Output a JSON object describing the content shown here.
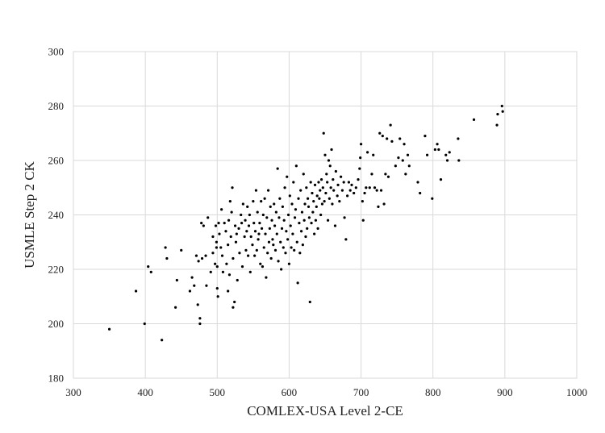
{
  "chart_data": {
    "type": "scatter",
    "title": "",
    "xlabel": "COMLEX-USA Level 2-CE",
    "ylabel": "USMLE Step 2 CK",
    "xlim": [
      300,
      1000
    ],
    "ylim": [
      180,
      300
    ],
    "x_ticks": [
      300,
      400,
      500,
      600,
      700,
      800,
      900,
      1000
    ],
    "y_ticks": [
      180,
      200,
      220,
      240,
      260,
      280,
      300
    ],
    "grid": true,
    "legend": "none",
    "colors": {
      "point": "#000000",
      "grid": "#d9d9d9",
      "frame": "#d9d9d9"
    },
    "points": [
      [
        350,
        198
      ],
      [
        387,
        212
      ],
      [
        399,
        200
      ],
      [
        404,
        221
      ],
      [
        408,
        219
      ],
      [
        423,
        194
      ],
      [
        428,
        228
      ],
      [
        430,
        224
      ],
      [
        444,
        216
      ],
      [
        442,
        206
      ],
      [
        450,
        227
      ],
      [
        462,
        212
      ],
      [
        465,
        217
      ],
      [
        468,
        214
      ],
      [
        471,
        225
      ],
      [
        474,
        223
      ],
      [
        473,
        207
      ],
      [
        476,
        200
      ],
      [
        476,
        202
      ],
      [
        479,
        224
      ],
      [
        478,
        237
      ],
      [
        481,
        236
      ],
      [
        484,
        225
      ],
      [
        485,
        214
      ],
      [
        487,
        239
      ],
      [
        491,
        219
      ],
      [
        494,
        226
      ],
      [
        494,
        232
      ],
      [
        497,
        222
      ],
      [
        498,
        236
      ],
      [
        499,
        230
      ],
      [
        499,
        228
      ],
      [
        500,
        221
      ],
      [
        500,
        213
      ],
      [
        501,
        210
      ],
      [
        502,
        237
      ],
      [
        503,
        233
      ],
      [
        505,
        228
      ],
      [
        506,
        242
      ],
      [
        507,
        225
      ],
      [
        508,
        219
      ],
      [
        510,
        237
      ],
      [
        512,
        234
      ],
      [
        513,
        222
      ],
      [
        515,
        212
      ],
      [
        515,
        229
      ],
      [
        516,
        238
      ],
      [
        517,
        218
      ],
      [
        518,
        245
      ],
      [
        519,
        232
      ],
      [
        520,
        241
      ],
      [
        521,
        250
      ],
      [
        522,
        206
      ],
      [
        522,
        224
      ],
      [
        524,
        208
      ],
      [
        525,
        236
      ],
      [
        526,
        230
      ],
      [
        527,
        233
      ],
      [
        528,
        216
      ],
      [
        530,
        235
      ],
      [
        531,
        226
      ],
      [
        533,
        240
      ],
      [
        534,
        237
      ],
      [
        535,
        221
      ],
      [
        536,
        244
      ],
      [
        538,
        232
      ],
      [
        539,
        238
      ],
      [
        540,
        227
      ],
      [
        541,
        234
      ],
      [
        542,
        243
      ],
      [
        543,
        225
      ],
      [
        544,
        236
      ],
      [
        545,
        240
      ],
      [
        546,
        219
      ],
      [
        547,
        232
      ],
      [
        549,
        229
      ],
      [
        550,
        245
      ],
      [
        551,
        237
      ],
      [
        552,
        225
      ],
      [
        553,
        234
      ],
      [
        554,
        249
      ],
      [
        555,
        227
      ],
      [
        556,
        241
      ],
      [
        557,
        231
      ],
      [
        558,
        233
      ],
      [
        559,
        237
      ],
      [
        560,
        222
      ],
      [
        561,
        245
      ],
      [
        562,
        235
      ],
      [
        563,
        221
      ],
      [
        564,
        240
      ],
      [
        565,
        228
      ],
      [
        566,
        246
      ],
      [
        567,
        233
      ],
      [
        568,
        217
      ],
      [
        569,
        239
      ],
      [
        570,
        226
      ],
      [
        571,
        249
      ],
      [
        572,
        230
      ],
      [
        573,
        235
      ],
      [
        574,
        243
      ],
      [
        575,
        224
      ],
      [
        576,
        238
      ],
      [
        577,
        231
      ],
      [
        578,
        229
      ],
      [
        579,
        244
      ],
      [
        580,
        236
      ],
      [
        581,
        227
      ],
      [
        582,
        241
      ],
      [
        583,
        233
      ],
      [
        584,
        257
      ],
      [
        585,
        223
      ],
      [
        586,
        239
      ],
      [
        587,
        246
      ],
      [
        588,
        230
      ],
      [
        589,
        220
      ],
      [
        590,
        235
      ],
      [
        591,
        243
      ],
      [
        592,
        228
      ],
      [
        593,
        238
      ],
      [
        594,
        250
      ],
      [
        595,
        226
      ],
      [
        596,
        234
      ],
      [
        597,
        254
      ],
      [
        598,
        231
      ],
      [
        599,
        240
      ],
      [
        600,
        222
      ],
      [
        601,
        247
      ],
      [
        602,
        236
      ],
      [
        603,
        228
      ],
      [
        604,
        244
      ],
      [
        605,
        233
      ],
      [
        606,
        252
      ],
      [
        607,
        227
      ],
      [
        608,
        239
      ],
      [
        609,
        242
      ],
      [
        610,
        258
      ],
      [
        611,
        230
      ],
      [
        612,
        215
      ],
      [
        613,
        246
      ],
      [
        614,
        237
      ],
      [
        615,
        226
      ],
      [
        616,
        249
      ],
      [
        617,
        234
      ],
      [
        618,
        241
      ],
      [
        619,
        229
      ],
      [
        620,
        255
      ],
      [
        621,
        238
      ],
      [
        622,
        244
      ],
      [
        623,
        232
      ],
      [
        624,
        250
      ],
      [
        625,
        235
      ],
      [
        626,
        246
      ],
      [
        627,
        243
      ],
      [
        628,
        239
      ],
      [
        629,
        208
      ],
      [
        630,
        252
      ],
      [
        631,
        237
      ],
      [
        632,
        248
      ],
      [
        633,
        241
      ],
      [
        634,
        245
      ],
      [
        635,
        233
      ],
      [
        636,
        251
      ],
      [
        637,
        238
      ],
      [
        638,
        243
      ],
      [
        639,
        247
      ],
      [
        640,
        235
      ],
      [
        641,
        252
      ],
      [
        642,
        246
      ],
      [
        643,
        249
      ],
      [
        644,
        240
      ],
      [
        645,
        253
      ],
      [
        646,
        244
      ],
      [
        647,
        250
      ],
      [
        648,
        270
      ],
      [
        649,
        245
      ],
      [
        650,
        262
      ],
      [
        651,
        248
      ],
      [
        652,
        255
      ],
      [
        653,
        252
      ],
      [
        654,
        238
      ],
      [
        655,
        260
      ],
      [
        656,
        246
      ],
      [
        657,
        258
      ],
      [
        658,
        250
      ],
      [
        659,
        264
      ],
      [
        660,
        244
      ],
      [
        661,
        253
      ],
      [
        662,
        249
      ],
      [
        664,
        236
      ],
      [
        665,
        256
      ],
      [
        667,
        247
      ],
      [
        668,
        251
      ],
      [
        670,
        245
      ],
      [
        672,
        254
      ],
      [
        674,
        249
      ],
      [
        676,
        252
      ],
      [
        677,
        239
      ],
      [
        679,
        231
      ],
      [
        681,
        247
      ],
      [
        683,
        252
      ],
      [
        685,
        249
      ],
      [
        687,
        251
      ],
      [
        690,
        248
      ],
      [
        693,
        250
      ],
      [
        696,
        253
      ],
      [
        698,
        257
      ],
      [
        699,
        261
      ],
      [
        700,
        266
      ],
      [
        702,
        245
      ],
      [
        703,
        238
      ],
      [
        705,
        248
      ],
      [
        707,
        250
      ],
      [
        709,
        263
      ],
      [
        712,
        250
      ],
      [
        715,
        255
      ],
      [
        717,
        262
      ],
      [
        719,
        250
      ],
      [
        722,
        249
      ],
      [
        724,
        243
      ],
      [
        726,
        270
      ],
      [
        728,
        249
      ],
      [
        730,
        269
      ],
      [
        732,
        244
      ],
      [
        734,
        255
      ],
      [
        736,
        268
      ],
      [
        738,
        254
      ],
      [
        741,
        273
      ],
      [
        743,
        267
      ],
      [
        748,
        258
      ],
      [
        752,
        261
      ],
      [
        754,
        268
      ],
      [
        758,
        260
      ],
      [
        760,
        266
      ],
      [
        762,
        255
      ],
      [
        765,
        262
      ],
      [
        767,
        258
      ],
      [
        779,
        252
      ],
      [
        782,
        248
      ],
      [
        789,
        269
      ],
      [
        792,
        262
      ],
      [
        799,
        246
      ],
      [
        803,
        264
      ],
      [
        806,
        266
      ],
      [
        808,
        264
      ],
      [
        811,
        253
      ],
      [
        818,
        262
      ],
      [
        820,
        260
      ],
      [
        823,
        263
      ],
      [
        835,
        268
      ],
      [
        836,
        260
      ],
      [
        857,
        275
      ],
      [
        889,
        273
      ],
      [
        890,
        277
      ],
      [
        896,
        280
      ],
      [
        897,
        278
      ]
    ]
  }
}
